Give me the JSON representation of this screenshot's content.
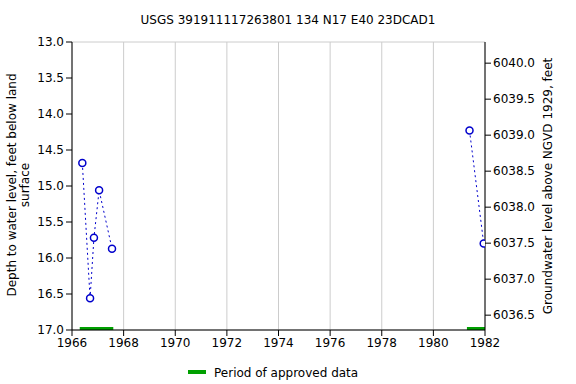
{
  "chart_data": {
    "type": "line",
    "title": "USGS 391911117263801 134  N17 E40 23DCAD1",
    "y_label": [
      "Depth to water level, feet below land",
      "surface"
    ],
    "y2_label": "Groundwater level above NGVD 1929, feet",
    "xlim": [
      1966,
      1982
    ],
    "xticks": [
      1966,
      1968,
      1970,
      1972,
      1974,
      1976,
      1978,
      1980,
      1982
    ],
    "ylim": [
      13,
      17
    ],
    "yticks": [
      {
        "value": 13,
        "label": "13.0"
      },
      {
        "value": 13.5,
        "label": "13.5"
      },
      {
        "value": 14,
        "label": "14.0"
      },
      {
        "value": 14.5,
        "label": "14.5"
      },
      {
        "value": 15,
        "label": "15.0"
      },
      {
        "value": 15.5,
        "label": "15.5"
      },
      {
        "value": 16,
        "label": "16.0"
      },
      {
        "value": 16.5,
        "label": "16.5"
      },
      {
        "value": 17,
        "label": "17.0"
      }
    ],
    "y2lim": [
      6036.294,
      6040.294
    ],
    "y2ticks": [
      {
        "value": 6036.5,
        "label": "6036.5"
      },
      {
        "value": 6037,
        "label": "6037.0"
      },
      {
        "value": 6037.5,
        "label": "6037.5"
      },
      {
        "value": 6038,
        "label": "6038.0"
      },
      {
        "value": 6038.5,
        "label": "6038.5"
      },
      {
        "value": 6039,
        "label": "6039.0"
      },
      {
        "value": 6039.5,
        "label": "6039.5"
      },
      {
        "value": 6040,
        "label": "6040.0"
      }
    ],
    "grid": true,
    "series": [
      {
        "x": [
          1966.4,
          1966.7,
          1966.85,
          1967.05,
          1967.55
        ],
        "values": [
          14.68,
          16.56,
          15.72,
          15.06,
          15.87
        ],
        "color": "#0000cc",
        "marker": "circle",
        "line_style": "dotted"
      },
      {
        "x": [
          1981.4,
          1981.95
        ],
        "values": [
          14.23,
          15.8
        ],
        "color": "#0000cc",
        "marker": "circle",
        "line_style": "dotted"
      }
    ],
    "approved_periods": {
      "name": "Period of approved data",
      "color": "#00a000",
      "periods": [
        [
          1966.3,
          1967.6
        ],
        [
          1981.3,
          1982
        ]
      ]
    }
  }
}
